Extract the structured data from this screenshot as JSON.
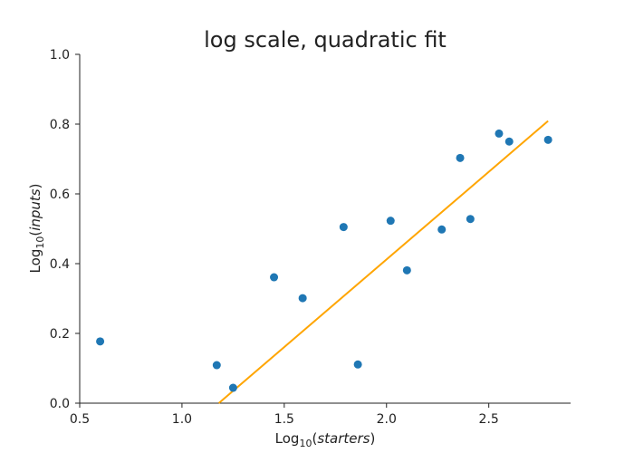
{
  "chart_data": {
    "type": "scatter",
    "title": "log scale, quadratic fit",
    "xlabel": {
      "prefix": "Log",
      "subscript": "10",
      "open": "(",
      "variable": "starters",
      "close": ")"
    },
    "ylabel": {
      "prefix": "Log",
      "subscript": "10",
      "open": "(",
      "variable": "inputs",
      "close": ")"
    },
    "xlim": [
      0.5,
      2.9
    ],
    "ylim": [
      0.0,
      1.0
    ],
    "xticks": [
      "0.5",
      "1.0",
      "1.5",
      "2.0",
      "2.5"
    ],
    "yticks": [
      "0.0",
      "0.2",
      "0.4",
      "0.6",
      "0.8",
      "1.0"
    ],
    "grid": false,
    "colors": {
      "points": "#1f77b4",
      "fit": "#ffa500",
      "axes": "#222222"
    },
    "points": [
      {
        "x": 0.6,
        "y": 0.177
      },
      {
        "x": 1.17,
        "y": 0.109
      },
      {
        "x": 1.25,
        "y": 0.044
      },
      {
        "x": 1.45,
        "y": 0.361
      },
      {
        "x": 1.59,
        "y": 0.301
      },
      {
        "x": 1.79,
        "y": 0.505
      },
      {
        "x": 1.86,
        "y": 0.111
      },
      {
        "x": 2.02,
        "y": 0.523
      },
      {
        "x": 2.1,
        "y": 0.381
      },
      {
        "x": 2.27,
        "y": 0.498
      },
      {
        "x": 2.36,
        "y": 0.703
      },
      {
        "x": 2.41,
        "y": 0.528
      },
      {
        "x": 2.55,
        "y": 0.773
      },
      {
        "x": 2.6,
        "y": 0.75
      },
      {
        "x": 2.79,
        "y": 0.755
      }
    ],
    "fit_line": {
      "x": [
        1.18,
        2.79
      ],
      "y": [
        0.0,
        0.809
      ]
    }
  }
}
